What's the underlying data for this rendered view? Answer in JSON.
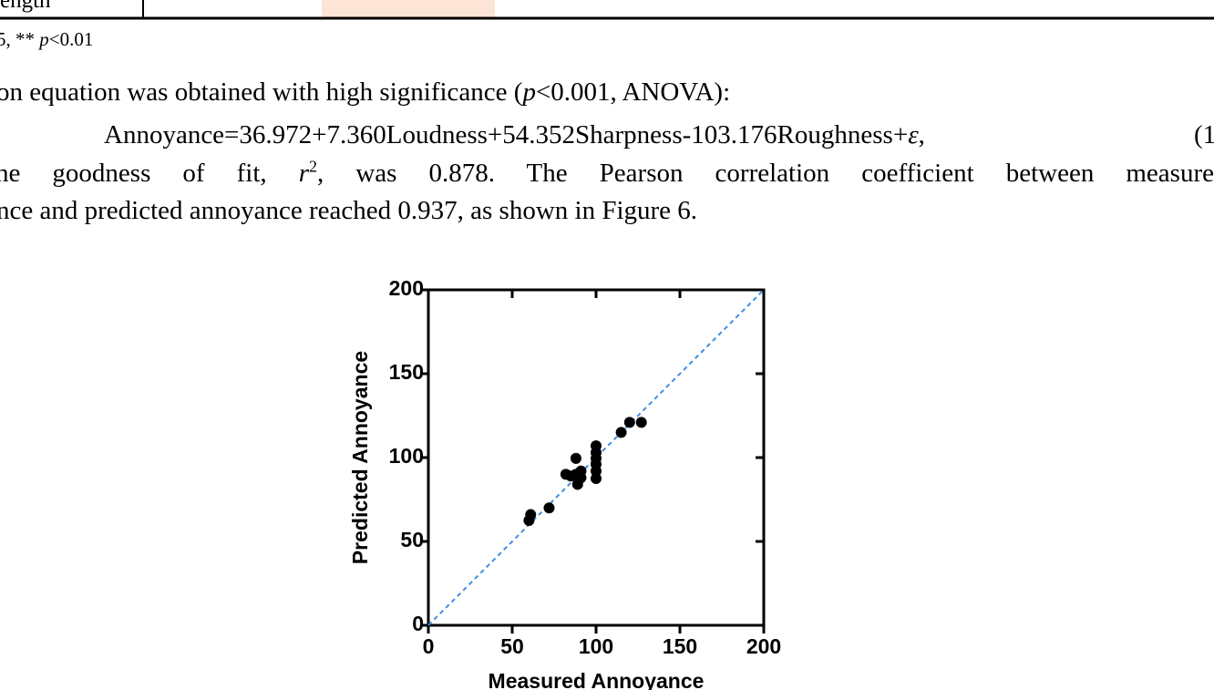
{
  "document": {
    "table_fragment": {
      "cell": "ength"
    },
    "footnote": [
      "5, ** ",
      "p",
      "<0.01"
    ],
    "paragraph": {
      "line1": [
        "on equation was obtained with high significance (",
        "p",
        "<0.001, ANOVA):"
      ],
      "equation": [
        "Annoyance=36.972+7.360Loudness+54.352Sharpness-103.176Roughness+",
        "ε",
        ",",
        "(1"
      ],
      "line3": [
        "he goodness of fit, ",
        "r",
        "2",
        ", was 0.878. The Pearson correlation coefficient between measure"
      ],
      "line4": "nce and predicted annoyance reached 0.937, as shown in Figure 6."
    }
  },
  "chart_data": {
    "type": "scatter",
    "x_label": "Measured Annoyance",
    "y_label": "Predicted Annoyance",
    "x": [
      61,
      60,
      72,
      82,
      85,
      88,
      88,
      89,
      91,
      91,
      100,
      100,
      100,
      100,
      100,
      100,
      115,
      120,
      127
    ],
    "values": [
      66,
      62.5,
      70,
      90,
      89,
      90,
      99.5,
      84,
      88,
      92,
      107,
      103,
      99.5,
      96,
      92,
      87.5,
      115,
      121,
      121
    ],
    "color": "#000000",
    "xlim": [
      0,
      200
    ],
    "ylim": [
      0,
      200
    ],
    "xticks": [
      0,
      50,
      100,
      150,
      200
    ],
    "yticks": [
      0,
      50,
      100,
      150,
      200
    ],
    "reference_line": {
      "x": [
        0,
        200
      ],
      "y": [
        0,
        200
      ],
      "color": "#3f8fe0"
    }
  }
}
